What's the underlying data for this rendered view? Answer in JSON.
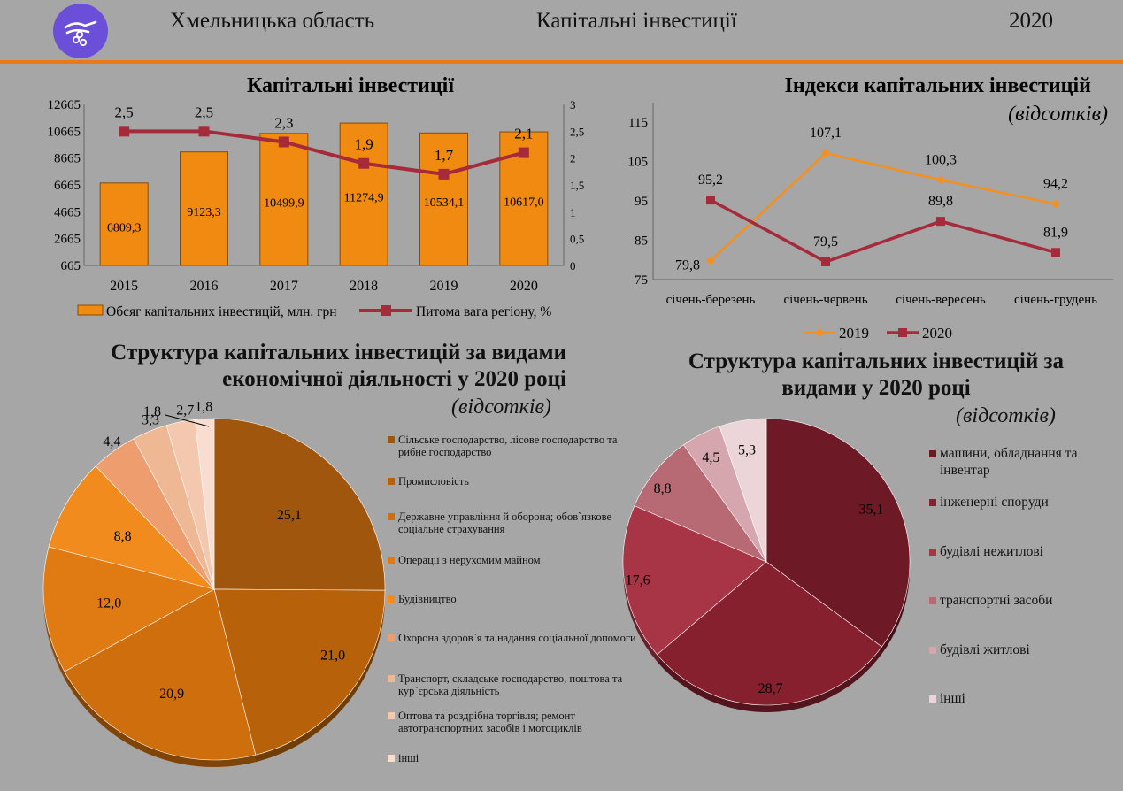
{
  "header": {
    "region": "Хмельницька область",
    "topic": "Капітальні інвестиції",
    "year": "2020",
    "accent_color": "#e87a1c",
    "logo_icon": "hand-coins-icon"
  },
  "chart_data": [
    {
      "type": "bar",
      "title": "Капітальні інвестиції",
      "categories": [
        "2015",
        "2016",
        "2017",
        "2018",
        "2019",
        "2020"
      ],
      "series": [
        {
          "name": "Обсяг капітальних інвестицій, млн. грн",
          "kind": "bar",
          "axis": "left",
          "color": "#f08a10",
          "values": [
            6809.3,
            9123.3,
            10499.9,
            11274.9,
            10534.1,
            10617.0
          ],
          "labels": [
            "6809,3",
            "9123,3",
            "10499,9",
            "11274,9",
            "10534,1",
            "10617,0"
          ]
        },
        {
          "name": "Питома вага регіону, %",
          "kind": "line",
          "axis": "right",
          "color": "#a52a3a",
          "values": [
            2.5,
            2.5,
            2.3,
            1.9,
            1.7,
            2.1
          ],
          "labels": [
            "2,5",
            "2,5",
            "2,3",
            "1,9",
            "1,7",
            "2,1"
          ]
        }
      ],
      "y_left": {
        "range": [
          665,
          12665
        ],
        "ticks": [
          "665",
          "2665",
          "4665",
          "6665",
          "8665",
          "10665",
          "12665"
        ]
      },
      "y_right": {
        "range": [
          0,
          3
        ],
        "ticks": [
          "0",
          "0,5",
          "1",
          "1,5",
          "2",
          "2,5",
          "3"
        ]
      },
      "legend_position": "bottom",
      "grid": false
    },
    {
      "type": "line",
      "title": "Індекси капітальних інвестицій",
      "subtitle": "(відсотків)",
      "categories": [
        "січень-березень",
        "січень-червень",
        "січень-вересень",
        "січень-грудень"
      ],
      "series": [
        {
          "name": "2019",
          "color": "#f5901e",
          "marker": "diamond",
          "values": [
            79.8,
            107.1,
            100.3,
            94.2
          ],
          "labels": [
            "79,8",
            "107,1",
            "100,3",
            "94,2"
          ]
        },
        {
          "name": "2020",
          "color": "#a52a3a",
          "marker": "square",
          "values": [
            95.2,
            79.5,
            89.8,
            81.9
          ],
          "labels": [
            "95,2",
            "79,5",
            "89,8",
            "81,9"
          ]
        }
      ],
      "y": {
        "range": [
          75,
          115
        ],
        "ticks": [
          "75",
          "85",
          "95",
          "105",
          "115"
        ]
      },
      "legend_position": "bottom",
      "grid": false
    },
    {
      "type": "pie",
      "title": "Структура  капітальних інвестицій за видами економічної діяльності у 2020 році",
      "subtitle": "(відсотків)",
      "slices": [
        {
          "label": "Сільське господарство, лісове господарство та рибне господарство",
          "value": 25.1,
          "text": "25,1",
          "color": "#a0560c"
        },
        {
          "label": "Промисловість",
          "value": 21.0,
          "text": "21,0",
          "color": "#b7620b"
        },
        {
          "label": "Державне управління й оборона; обов`язкове соціальне страхування",
          "value": 20.9,
          "text": "20,9",
          "color": "#cf6e0c"
        },
        {
          "label": "Операції з нерухомим майном",
          "value": 12.0,
          "text": "12,0",
          "color": "#e07a12"
        },
        {
          "label": "Будівництво",
          "value": 8.8,
          "text": "8,8",
          "color": "#f18b1e"
        },
        {
          "label": "Охорона здоров`я та надання соціальної допомоги",
          "value": 4.4,
          "text": "4,4",
          "color": "#ee9e6e"
        },
        {
          "label": "Транспорт, складське господарство, поштова та кур`єрська діяльність",
          "value": 3.3,
          "text": "3,3",
          "color": "#efb895"
        },
        {
          "label": "Оптова та роздрібна торгівля; ремонт автотранспортних засобів і мотоциклів",
          "value": 2.7,
          "text": "2,7",
          "color": "#f3c8ae"
        },
        {
          "label": "інші",
          "value": 1.8,
          "text": "1,8",
          "color": "#f8ddd0"
        }
      ],
      "legend_position": "right"
    },
    {
      "type": "pie",
      "title": "Структура  капітальних інвестицій за видами у 2020 році",
      "subtitle": "(відсотків)",
      "slices": [
        {
          "label": "машини, обладнання та інвентар",
          "value": 35.1,
          "text": "35,1",
          "color": "#6e1a26"
        },
        {
          "label": "інженерні споруди",
          "value": 28.7,
          "text": "28,7",
          "color": "#86202f"
        },
        {
          "label": "будівлі нежитлові",
          "value": 17.6,
          "text": "17,6",
          "color": "#a83546"
        },
        {
          "label": "транспортні засоби",
          "value": 8.8,
          "text": "8,8",
          "color": "#b86a74"
        },
        {
          "label": "будівлі житлові",
          "value": 4.5,
          "text": "4,5",
          "color": "#d6a6ae"
        },
        {
          "label": "інші",
          "value": 5.3,
          "text": "5,3",
          "color": "#ecd5d8"
        }
      ],
      "legend_position": "right"
    }
  ]
}
